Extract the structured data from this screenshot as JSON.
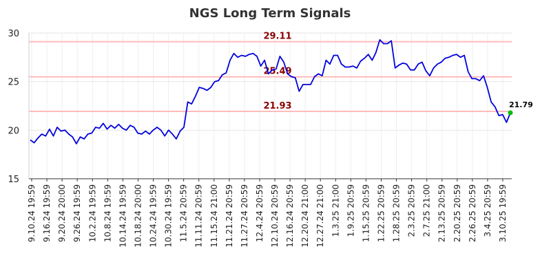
{
  "chart_data": {
    "type": "line",
    "title": "NGS Long Term Signals",
    "xlabel": "",
    "ylabel": "",
    "ylim": [
      15,
      30
    ],
    "yticks": [
      "15",
      "20",
      "25",
      "30"
    ],
    "grid": true,
    "line_color": "#0000dd",
    "xtick_labels": [
      "9.10.24 19:59",
      "9.16.24 19:59",
      "9.20.24 20:00",
      "9.26.24 19:59",
      "10.2.24 19:59",
      "10.8.24 19:59",
      "10.14.24 19:59",
      "10.18.24 20:00",
      "10.24.24 19:59",
      "10.30.24 19:59",
      "11.5.24 20:59",
      "11.11.24 20:59",
      "11.15.24 21:00",
      "11.21.24 20:59",
      "11.27.24 20:59",
      "12.4.24 20:59",
      "12.10.24 20:59",
      "12.16.24 20:59",
      "12.20.24 21:00",
      "12.27.24 21:00",
      "1.3.25 21:00",
      "1.9.25 20:59",
      "1.15.25 20:59",
      "1.22.25 20:59",
      "1.28.25 20:59",
      "2.3.25 20:59",
      "2.7.25 21:00",
      "2.13.25 20:59",
      "2.20.25 20:59",
      "2.26.25 20:59",
      "3.4.25 20:59",
      "3.10.25 19:59"
    ],
    "reference_lines": [
      {
        "label": "29.11",
        "value": 29.11,
        "color": "#ffbbbb",
        "label_color": "#8b0000"
      },
      {
        "label": "25.49",
        "value": 25.49,
        "color": "#ffbbbb",
        "label_color": "#8b0000"
      },
      {
        "label": "21.93",
        "value": 21.93,
        "color": "#ffbbbb",
        "label_color": "#8b0000"
      }
    ],
    "last_value_label": "21.79",
    "last_value": 21.79,
    "series": [
      {
        "values": [
          19.0,
          18.7,
          19.2,
          19.6,
          19.4,
          20.1,
          19.4,
          20.3,
          19.9,
          20.0,
          19.6,
          19.3,
          18.6,
          19.3,
          19.1,
          19.6,
          19.7,
          20.3,
          20.2,
          20.7,
          20.1,
          20.5,
          20.2,
          20.6,
          20.2,
          20.0,
          20.5,
          20.3,
          19.7,
          19.6,
          19.9,
          19.6,
          20.0,
          20.3,
          20.0,
          19.4,
          20.0,
          19.6,
          19.1,
          19.9,
          20.3,
          22.9,
          22.7,
          23.5,
          24.4,
          24.3,
          24.1,
          24.4,
          25.0,
          25.1,
          25.7,
          25.9,
          27.2,
          27.9,
          27.5,
          27.7,
          27.6,
          27.8,
          27.9,
          27.6,
          26.6,
          27.2,
          25.8,
          26.2,
          26.3,
          27.6,
          27.0,
          25.8,
          25.5,
          25.4,
          24.0,
          24.7,
          24.7,
          24.7,
          25.5,
          25.8,
          25.6,
          27.2,
          26.8,
          27.7,
          27.7,
          26.8,
          26.5,
          26.5,
          26.6,
          26.4,
          27.1,
          27.4,
          27.8,
          27.2,
          28.0,
          29.3,
          28.9,
          28.9,
          29.2,
          26.4,
          26.7,
          26.9,
          26.8,
          26.2,
          26.2,
          26.8,
          27.0,
          26.1,
          25.6,
          26.4,
          26.8,
          27.0,
          27.4,
          27.5,
          27.7,
          27.8,
          27.5,
          27.7,
          26.0,
          25.3,
          25.3,
          25.1,
          25.6,
          24.4,
          22.9,
          22.4,
          21.5,
          21.6,
          20.8,
          21.79
        ]
      }
    ]
  }
}
